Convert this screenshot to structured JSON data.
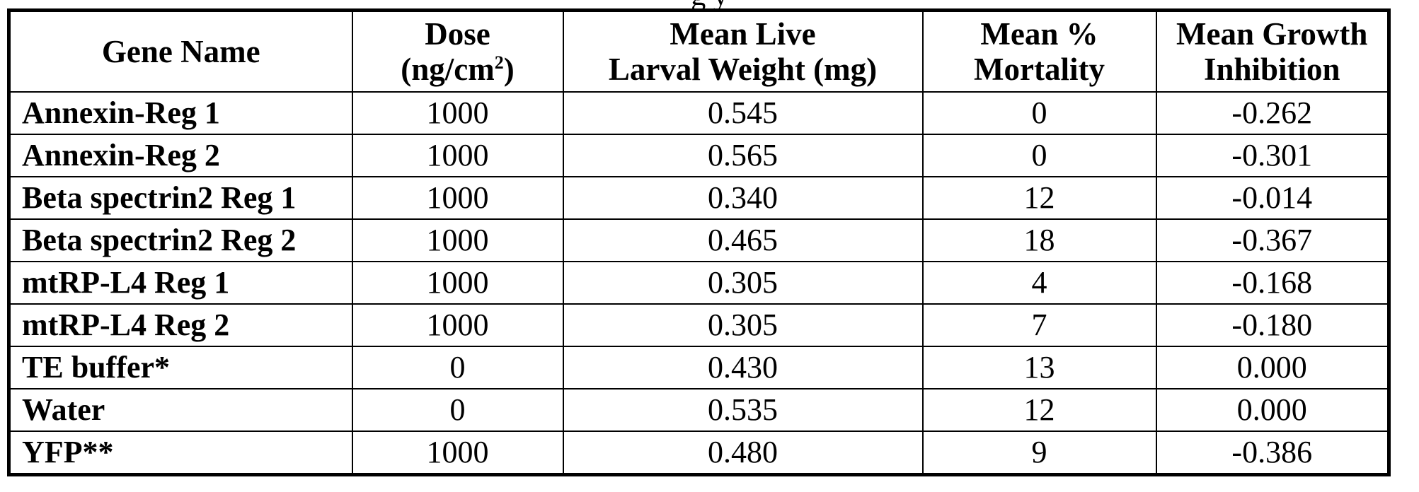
{
  "caption_fragment": "g y",
  "table": {
    "headers": {
      "gene_name": "Gene Name",
      "dose_line1": "Dose",
      "dose_line2_pre": "(ng/cm",
      "dose_line2_sup": "2",
      "dose_line2_post": ")",
      "weight_line1": "Mean Live",
      "weight_line2": "Larval Weight (mg)",
      "mortality_line1": "Mean %",
      "mortality_line2": "Mortality",
      "growth_line1": "Mean Growth",
      "growth_line2": "Inhibition"
    },
    "rows": [
      {
        "gene": "Annexin-Reg 1",
        "dose": "1000",
        "weight": "0.545",
        "mortality": "0",
        "growth": "-0.262"
      },
      {
        "gene": "Annexin-Reg 2",
        "dose": "1000",
        "weight": "0.565",
        "mortality": "0",
        "growth": "-0.301"
      },
      {
        "gene": "Beta spectrin2 Reg 1",
        "dose": "1000",
        "weight": "0.340",
        "mortality": "12",
        "growth": "-0.014"
      },
      {
        "gene": "Beta spectrin2 Reg 2",
        "dose": "1000",
        "weight": "0.465",
        "mortality": "18",
        "growth": "-0.367"
      },
      {
        "gene": "mtRP-L4 Reg 1",
        "dose": "1000",
        "weight": "0.305",
        "mortality": "4",
        "growth": "-0.168"
      },
      {
        "gene": "mtRP-L4 Reg 2",
        "dose": "1000",
        "weight": "0.305",
        "mortality": "7",
        "growth": "-0.180"
      },
      {
        "gene": "TE buffer*",
        "dose": "0",
        "weight": "0.430",
        "mortality": "13",
        "growth": "0.000"
      },
      {
        "gene": "Water",
        "dose": "0",
        "weight": "0.535",
        "mortality": "12",
        "growth": "0.000"
      },
      {
        "gene": "YFP**",
        "dose": "1000",
        "weight": "0.480",
        "mortality": "9",
        "growth": "-0.386"
      }
    ]
  }
}
